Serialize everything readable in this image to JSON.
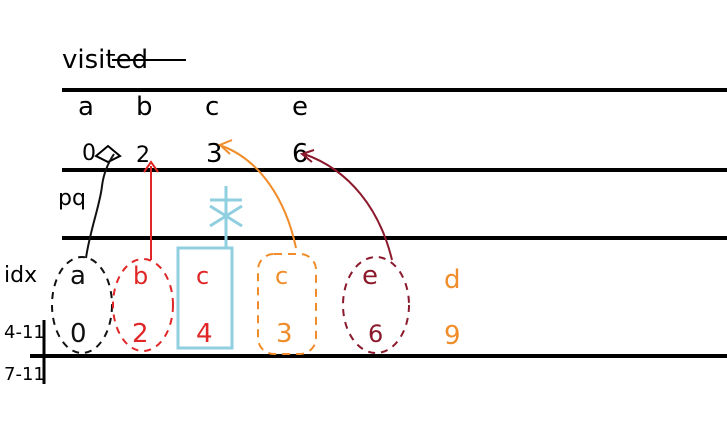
{
  "title": "visited",
  "visited": {
    "keys": [
      "a",
      "b",
      "c",
      "e"
    ],
    "values": [
      "0",
      "2",
      "3",
      "6"
    ]
  },
  "row_labels": {
    "pq": "pq",
    "idx": "idx",
    "dist": "4-11",
    "bottom": "7-11"
  },
  "pq": [
    {
      "key": "a",
      "value": "0",
      "color": "#111111",
      "style": "dashed-ellipse"
    },
    {
      "key": "b",
      "value": "2",
      "color": "#e02626",
      "style": "dashed-ellipse"
    },
    {
      "key": "c",
      "value": "4",
      "color": "#8fcfe0",
      "style": "solid-rect"
    },
    {
      "key": "c",
      "value": "3",
      "color": "#f08c2a",
      "style": "dashed-rect"
    },
    {
      "key": "e",
      "value": "6",
      "color": "#8b1a2c",
      "style": "dashed-ellipse"
    },
    {
      "key": "d",
      "value": "9",
      "color": "#f08c2a",
      "style": "none"
    }
  ],
  "colors": {
    "ink": "#111111",
    "red": "#e02626",
    "blue": "#8fcfe0",
    "orange": "#f08c2a",
    "maroon": "#8b1a2c"
  },
  "icons": [
    "cross-out-mark"
  ]
}
